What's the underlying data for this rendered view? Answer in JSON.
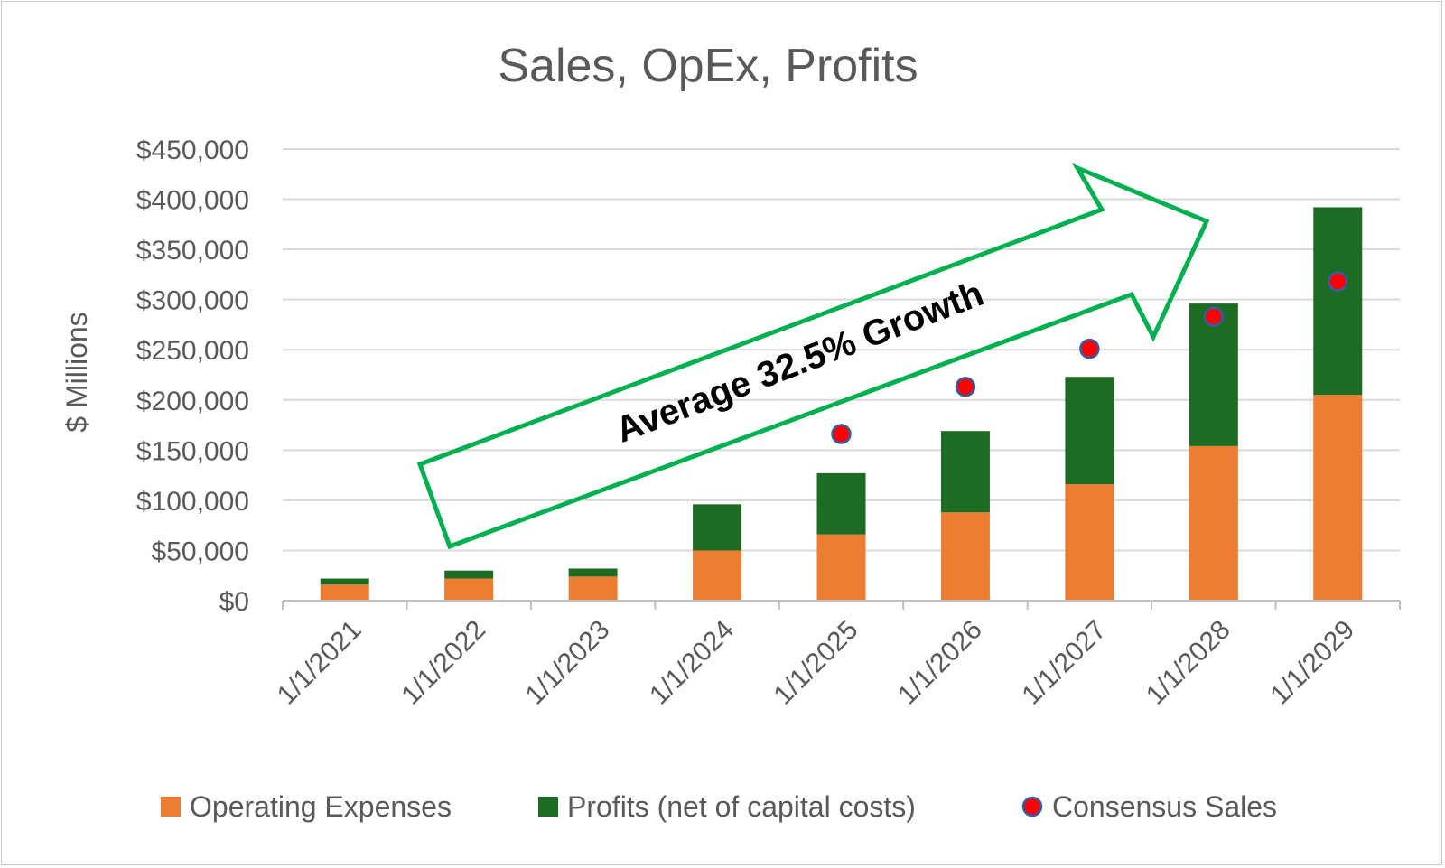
{
  "chart_data": {
    "type": "bar",
    "title": "Sales, OpEx, Profits",
    "ylabel": "$ Millions",
    "xlabel": "",
    "ylim": [
      0,
      450000
    ],
    "y_ticks": [
      "$0",
      "$50,000",
      "$100,000",
      "$150,000",
      "$200,000",
      "$250,000",
      "$300,000",
      "$350,000",
      "$400,000",
      "$450,000"
    ],
    "categories": [
      "1/1/2021",
      "1/1/2022",
      "1/1/2023",
      "1/1/2024",
      "1/1/2025",
      "1/1/2026",
      "1/1/2027",
      "1/1/2028",
      "1/1/2029"
    ],
    "series": [
      {
        "name": "Operating Expenses",
        "kind": "stacked-bar",
        "color": "#ed7d31",
        "values": [
          16000,
          22000,
          24000,
          50000,
          66000,
          88000,
          116000,
          154000,
          205000
        ]
      },
      {
        "name": "Profits (net of capital costs)",
        "kind": "stacked-bar",
        "color": "#1e6b23",
        "values": [
          6000,
          8000,
          8000,
          46000,
          61000,
          81000,
          107000,
          142000,
          187000
        ]
      },
      {
        "name": "Consensus Sales",
        "kind": "marker",
        "color": "#ff0000",
        "edge_color": "#2e5fa8",
        "values": [
          null,
          null,
          null,
          null,
          166000,
          213000,
          251000,
          283000,
          318000
        ]
      }
    ],
    "grid": true,
    "legend_position": "bottom",
    "annotation": {
      "text": "Average 32.5% Growth",
      "shape": "arrow",
      "outline_color": "#00b050"
    }
  }
}
